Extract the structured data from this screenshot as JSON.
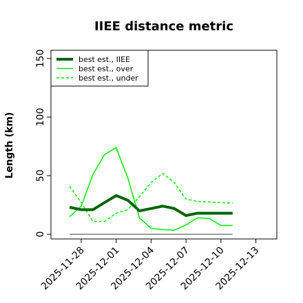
{
  "chart_data": {
    "type": "line",
    "title": "IIEE distance metric",
    "xlabel": "",
    "ylabel": "Length (km)",
    "x_ticks": [
      "2025-11-28",
      "2025-12-01",
      "2025-12-04",
      "2025-12-07",
      "2025-12-10",
      "2025-12-13"
    ],
    "x_tick_values": [
      2,
      5,
      8,
      11,
      14,
      17
    ],
    "y_ticks": [
      "0",
      "50",
      "100",
      "150"
    ],
    "y_tick_values": [
      0,
      50,
      100,
      150
    ],
    "xlim": [
      -0.6,
      18.8
    ],
    "ylim": [
      -4,
      157
    ],
    "x": [
      1,
      2,
      3,
      4,
      5,
      6,
      7,
      8,
      9,
      10,
      11,
      12,
      13,
      14,
      15
    ],
    "x_dates": [
      "2025-11-27",
      "2025-11-28",
      "2025-11-29",
      "2025-11-30",
      "2025-12-01",
      "2025-12-02",
      "2025-12-03",
      "2025-12-04",
      "2025-12-05",
      "2025-12-06",
      "2025-12-07",
      "2025-12-08",
      "2025-12-09",
      "2025-12-10",
      "2025-12-11"
    ],
    "series": [
      {
        "name": "best est., IIEE",
        "color": "#006400",
        "style": "solid-thick",
        "values": [
          23,
          21,
          21,
          27,
          33,
          29,
          20,
          22,
          24,
          22,
          16,
          18,
          18,
          18,
          18
        ]
      },
      {
        "name": "best est., over",
        "color": "#00ee00",
        "style": "solid",
        "values": [
          15,
          24,
          51,
          68,
          74,
          48,
          14,
          5,
          4,
          3.5,
          8,
          14,
          13.5,
          7.5,
          7.5
        ]
      },
      {
        "name": "best est., under",
        "color": "#00ee00",
        "style": "dashed",
        "values": [
          41,
          27,
          11,
          11,
          18,
          21,
          32,
          44,
          52,
          44,
          30,
          28,
          27.5,
          27,
          26.5
        ]
      }
    ],
    "baseline": {
      "value": 0,
      "color": "#808080"
    },
    "legend_position": "top-left",
    "grid": false
  }
}
